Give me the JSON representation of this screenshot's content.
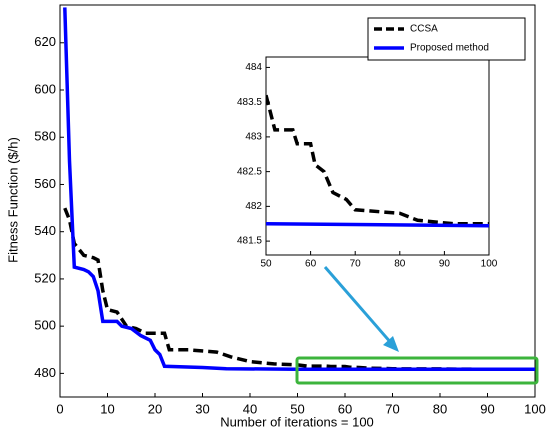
{
  "chart_data": {
    "type": "line",
    "xlabel": "Number of iterations = 100",
    "ylabel": "Fitness Function ($/h)",
    "xlim": [
      0,
      100
    ],
    "ylim": [
      470,
      636
    ],
    "xticks": [
      0,
      10,
      20,
      30,
      40,
      50,
      60,
      70,
      80,
      90,
      100
    ],
    "yticks": [
      480,
      500,
      520,
      540,
      560,
      580,
      600,
      620
    ],
    "legend": "upper right",
    "series": [
      {
        "name": "CCSA",
        "color": "#000000",
        "dashed": true,
        "x": [
          1,
          2,
          3,
          5,
          7,
          8,
          9,
          10,
          12,
          14,
          16,
          18,
          22,
          23,
          27,
          33,
          36,
          40,
          45,
          50,
          52,
          56,
          57,
          60,
          61,
          63,
          65,
          68,
          70,
          80,
          84,
          92,
          100
        ],
        "values": [
          550,
          545,
          535,
          530,
          529,
          528,
          515,
          507,
          506,
          500,
          499,
          497,
          497,
          490,
          490,
          489,
          487,
          485,
          484,
          483.6,
          483.1,
          483.1,
          482.9,
          482.9,
          482.6,
          482.5,
          482.2,
          482.1,
          481.95,
          481.9,
          481.8,
          481.75,
          481.75
        ]
      },
      {
        "name": "Proposed method",
        "color": "#0000ff",
        "dashed": false,
        "x": [
          1,
          2,
          3,
          5,
          6,
          7,
          8,
          9,
          11,
          12,
          13,
          15,
          17,
          19,
          20,
          21,
          22,
          30,
          35,
          50,
          100
        ],
        "values": [
          635,
          570,
          525,
          524,
          523,
          521,
          515,
          502,
          502,
          502,
          500,
          499,
          496,
          494,
          490,
          488,
          483,
          482.5,
          482,
          481.75,
          481.72
        ]
      }
    ],
    "inset": {
      "xlim": [
        50,
        100
      ],
      "ylim": [
        481.3,
        484.15
      ],
      "xticks": [
        50,
        60,
        70,
        80,
        90,
        100
      ],
      "yticks": [
        481.5,
        482,
        482.5,
        483,
        483.5,
        484
      ]
    }
  }
}
